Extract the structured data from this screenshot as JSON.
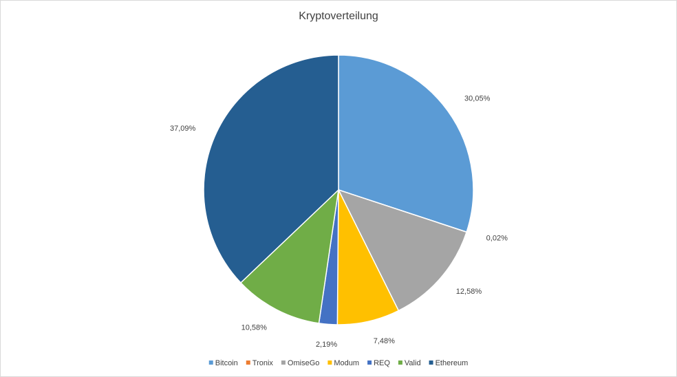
{
  "chart_data": {
    "type": "pie",
    "title": "Kryptoverteilung",
    "categories": [
      "Bitcoin",
      "Tronix",
      "OmiseGo",
      "Modum",
      "REQ",
      "Valid",
      "Ethereum"
    ],
    "values": [
      30.05,
      0.02,
      12.58,
      7.48,
      2.19,
      10.58,
      37.09
    ],
    "value_labels": [
      "30,05%",
      "0,02%",
      "12,58%",
      "7,48%",
      "2,19%",
      "10,58%",
      "37,09%"
    ],
    "colors": [
      "#5b9bd5",
      "#ed7d31",
      "#a5a5a5",
      "#ffc000",
      "#4472c4",
      "#70ad47",
      "#255e91"
    ],
    "legend": "bottom"
  }
}
